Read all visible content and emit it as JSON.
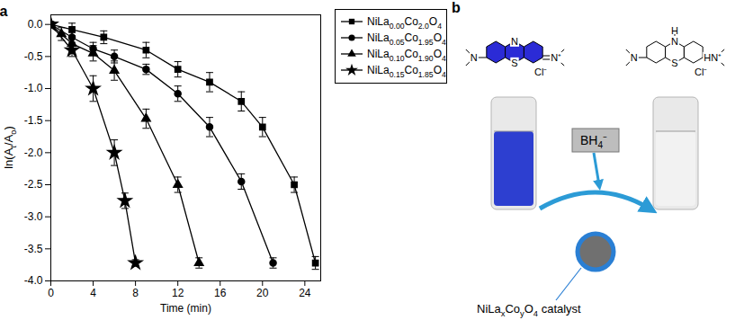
{
  "chart_data": {
    "type": "line",
    "panel_label": "a",
    "x_label": "Time (min)",
    "y_label": "ln(At/Ao)",
    "xlim": [
      0,
      25.5
    ],
    "xticks": [
      0,
      4,
      8,
      12,
      16,
      20,
      24
    ],
    "ylim": [
      -4.0,
      0.15
    ],
    "yticks": [
      {
        "value": 0,
        "label": "0.0"
      },
      {
        "value": -0.5,
        "label": "-0.5"
      },
      {
        "value": -1.0,
        "label": "-1.0"
      },
      {
        "value": -1.5,
        "label": "-1.5"
      },
      {
        "value": -2.0,
        "label": "-2.0"
      },
      {
        "value": -2.5,
        "label": "-2.5"
      },
      {
        "value": -3.0,
        "label": "-3.0"
      },
      {
        "value": -3.5,
        "label": "-3.5"
      },
      {
        "value": -4.0,
        "label": "-4.0"
      }
    ],
    "grid": false,
    "legend": "right",
    "series": [
      {
        "name": "NiLa0.00Co2.0O4",
        "color": "#000000",
        "marker": "square",
        "x": [
          0,
          2,
          5,
          9,
          12,
          15,
          18,
          20,
          23,
          25
        ],
        "values": [
          0,
          -0.08,
          -0.2,
          -0.4,
          -0.7,
          -0.9,
          -1.2,
          -1.6,
          -2.5,
          -3.72
        ],
        "errors": [
          0,
          0.1,
          0.1,
          0.12,
          0.12,
          0.15,
          0.15,
          0.15,
          0.12,
          0.1
        ]
      },
      {
        "name": "NiLa0.05Co1.95O4",
        "color": "#000000",
        "marker": "circle",
        "x": [
          0,
          2,
          4,
          6,
          9,
          12,
          15,
          18,
          21
        ],
        "values": [
          0,
          -0.2,
          -0.38,
          -0.5,
          -0.7,
          -1.08,
          -1.6,
          -2.45,
          -3.72
        ],
        "errors": [
          0,
          0.08,
          0.1,
          0.1,
          0.08,
          0.12,
          0.15,
          0.12,
          0.08
        ]
      },
      {
        "name": "NiLa0.10Co1.90O4",
        "color": "#000000",
        "marker": "triangle",
        "x": [
          0,
          1,
          2,
          4,
          6,
          9,
          12,
          14
        ],
        "values": [
          0,
          -0.15,
          -0.3,
          -0.45,
          -0.72,
          -1.47,
          -2.5,
          -3.72
        ],
        "errors": [
          0,
          0.1,
          0.12,
          0.12,
          0.15,
          0.15,
          0.12,
          0.08
        ]
      },
      {
        "name": "NiLa0.15Co1.85O4",
        "color": "#000000",
        "marker": "star",
        "x": [
          0,
          2,
          4,
          6,
          7,
          8
        ],
        "values": [
          0,
          -0.4,
          -1.0,
          -2.0,
          -2.75,
          -3.72
        ],
        "errors": [
          0,
          0.1,
          0.2,
          0.2,
          0.12,
          0.05
        ]
      }
    ]
  },
  "diagram": {
    "panel_label": "b",
    "oxidized": {
      "left_amine": "N",
      "ring_n": "N",
      "ring_s": "S",
      "right_amine": "N⁺",
      "counter_ion": "Cl⁻"
    },
    "reduced": {
      "left_amine": "N",
      "ring_n": "N",
      "ring_h": "H",
      "ring_s": "S",
      "right_amine": "HN⁺",
      "counter_ion": "Cl⁻"
    },
    "reagent": "BH4⁻",
    "catalyst_label": "NiLaxCoyO4 catalyst"
  }
}
